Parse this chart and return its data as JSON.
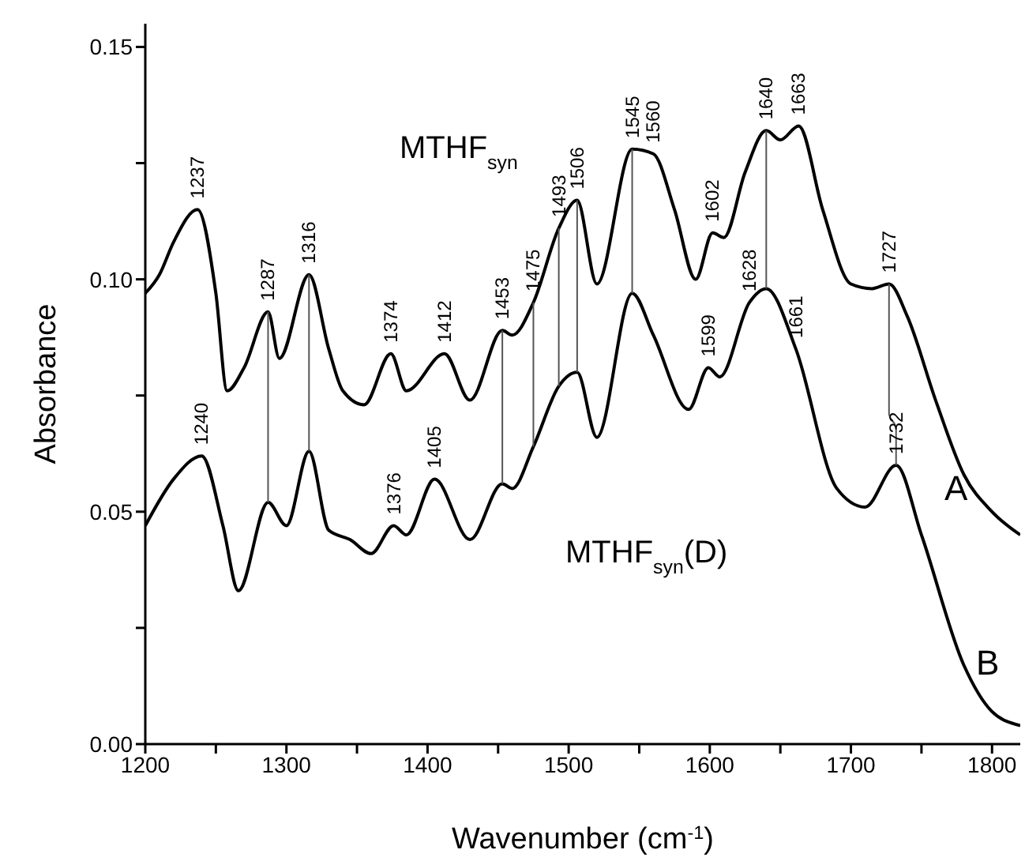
{
  "chart_data": {
    "type": "line",
    "xlabel": "Wavenumber (cm$^{-1}$)",
    "ylabel": "Absorbance",
    "xlim": [
      1200,
      1820
    ],
    "ylim": [
      0,
      0.155
    ],
    "xticks": [
      1200,
      {
        "value": 1250,
        "label": null
      },
      1300,
      {
        "value": 1350,
        "label": null
      },
      1400,
      {
        "value": 1450,
        "label": null
      },
      1500,
      {
        "value": 1550,
        "label": null
      },
      1600,
      {
        "value": 1650,
        "label": null
      },
      1700,
      {
        "value": 1750,
        "label": null
      },
      1800
    ],
    "yticks": [
      {
        "value": 0,
        "label": "0.00"
      },
      {
        "value": 0.025,
        "label": null
      },
      {
        "value": 0.05,
        "label": "0.05"
      },
      {
        "value": 0.075,
        "label": null
      },
      {
        "value": 0.1,
        "label": "0.10"
      },
      {
        "value": 0.125,
        "label": null
      },
      {
        "value": 0.15,
        "label": "0.15"
      }
    ],
    "series": [
      {
        "name": "A",
        "color": "#000000",
        "x": [
          1200,
          1210,
          1220,
          1237,
          1250,
          1258,
          1270,
          1287,
          1295,
          1316,
          1330,
          1340,
          1355,
          1374,
          1385,
          1412,
          1430,
          1453,
          1460,
          1475,
          1493,
          1506,
          1520,
          1545,
          1560,
          1575,
          1590,
          1602,
          1610,
          1625,
          1640,
          1650,
          1663,
          1680,
          1700,
          1715,
          1727,
          1740,
          1760,
          1780,
          1800,
          1820
        ],
        "values": [
          0.097,
          0.101,
          0.108,
          0.115,
          0.097,
          0.076,
          0.081,
          0.093,
          0.083,
          0.101,
          0.085,
          0.076,
          0.073,
          0.084,
          0.076,
          0.084,
          0.074,
          0.089,
          0.088,
          0.095,
          0.111,
          0.117,
          0.099,
          0.128,
          0.127,
          0.115,
          0.1,
          0.11,
          0.109,
          0.123,
          0.132,
          0.13,
          0.133,
          0.115,
          0.099,
          0.098,
          0.099,
          0.092,
          0.074,
          0.058,
          0.05,
          0.045
        ]
      },
      {
        "name": "B",
        "color": "#000000",
        "x": [
          1200,
          1220,
          1240,
          1255,
          1266,
          1287,
          1300,
          1316,
          1330,
          1345,
          1360,
          1376,
          1385,
          1405,
          1430,
          1453,
          1460,
          1475,
          1493,
          1506,
          1520,
          1545,
          1560,
          1585,
          1599,
          1607,
          1628,
          1640,
          1661,
          1690,
          1710,
          1732,
          1750,
          1780,
          1800,
          1820
        ],
        "values": [
          0.047,
          0.057,
          0.062,
          0.047,
          0.033,
          0.052,
          0.047,
          0.063,
          0.046,
          0.044,
          0.041,
          0.047,
          0.045,
          0.057,
          0.044,
          0.056,
          0.055,
          0.064,
          0.077,
          0.08,
          0.066,
          0.097,
          0.088,
          0.072,
          0.081,
          0.079,
          0.095,
          0.098,
          0.085,
          0.055,
          0.051,
          0.06,
          0.045,
          0.017,
          0.007,
          0.004
        ]
      },
      {
        "color": "#555555",
        "x": [
          1287,
          1287
        ],
        "values": [
          0.052,
          0.093
        ]
      },
      {
        "color": "#555555",
        "x": [
          1316,
          1316
        ],
        "values": [
          0.063,
          0.101
        ]
      },
      {
        "color": "#555555",
        "x": [
          1453,
          1453
        ],
        "values": [
          0.056,
          0.089
        ]
      },
      {
        "color": "#555555",
        "x": [
          1475,
          1475
        ],
        "values": [
          0.064,
          0.095
        ]
      },
      {
        "color": "#555555",
        "x": [
          1493,
          1493
        ],
        "values": [
          0.077,
          0.111
        ]
      },
      {
        "color": "#555555",
        "x": [
          1506,
          1506
        ],
        "values": [
          0.08,
          0.117
        ]
      },
      {
        "color": "#555555",
        "x": [
          1545,
          1545
        ],
        "values": [
          0.097,
          0.128
        ]
      },
      {
        "color": "#555555",
        "x": [
          1640,
          1640
        ],
        "values": [
          0.098,
          0.132
        ]
      },
      {
        "color": "#555555",
        "x": [
          1732,
          1732,
          1727,
          1727
        ],
        "values": [
          0.06,
          0.068,
          0.071,
          0.099
        ]
      }
    ],
    "annotations": [
      "MTHF$_{syn}$",
      "MTHF$_{syn}$(D)",
      {
        "text": "1237",
        "x": 1237,
        "y": 0.115
      },
      {
        "text": "1287",
        "x": 1287,
        "y": 0.093
      },
      {
        "text": "1316",
        "x": 1316,
        "y": 0.101
      },
      {
        "text": "1374",
        "x": 1374,
        "y": 0.084
      },
      {
        "text": "1412",
        "x": 1412,
        "y": 0.084
      },
      {
        "text": "1453",
        "x": 1453,
        "y": 0.089
      },
      {
        "text": "1475",
        "x": 1475,
        "y": 0.095
      },
      {
        "text": "1493",
        "x": 1493,
        "y": 0.111
      },
      {
        "text": "1506",
        "x": 1506,
        "y": 0.117
      },
      {
        "text": "1545",
        "x": 1545,
        "y": 0.128
      },
      {
        "text": "1560",
        "x": 1560,
        "y": 0.127
      },
      {
        "text": "1602",
        "x": 1602,
        "y": 0.11
      },
      {
        "text": "1640",
        "x": 1640,
        "y": 0.132
      },
      {
        "text": "1663",
        "x": 1663,
        "y": 0.133
      },
      {
        "text": "1727",
        "x": 1727,
        "y": 0.099
      },
      {
        "text": "1240",
        "x": 1240,
        "y": 0.062
      },
      {
        "text": "1376",
        "x": 1376,
        "y": 0.047
      },
      {
        "text": "1405",
        "x": 1405,
        "y": 0.057
      },
      {
        "text": "1599",
        "x": 1599,
        "y": 0.081
      },
      {
        "text": "1628",
        "x": 1628,
        "y": 0.095
      },
      {
        "text": "1661",
        "x": 1661,
        "y": 0.085
      },
      {
        "text": "1732",
        "x": 1732,
        "y": 0.06
      }
    ]
  }
}
